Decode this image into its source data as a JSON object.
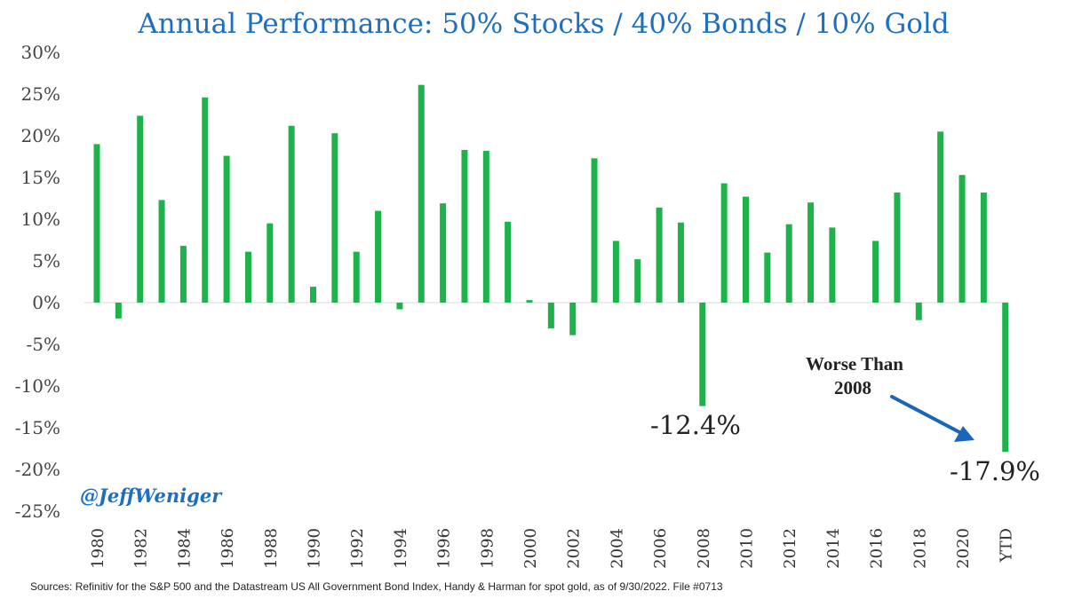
{
  "chart_data": {
    "type": "bar",
    "title": "Annual Performance: 50% Stocks / 40% Bonds / 10% Gold",
    "categories": [
      "1980",
      "1981",
      "1982",
      "1983",
      "1984",
      "1985",
      "1986",
      "1987",
      "1988",
      "1989",
      "1990",
      "1991",
      "1992",
      "1993",
      "1994",
      "1995",
      "1996",
      "1997",
      "1998",
      "1999",
      "2000",
      "2001",
      "2002",
      "2003",
      "2004",
      "2005",
      "2006",
      "2007",
      "2008",
      "2009",
      "2010",
      "2011",
      "2012",
      "2013",
      "2014",
      "2015",
      "2016",
      "2017",
      "2018",
      "2019",
      "2020",
      "2021",
      "YTD"
    ],
    "x_tick_labels": [
      "1980",
      "",
      "1982",
      "",
      "1984",
      "",
      "1986",
      "",
      "1988",
      "",
      "1990",
      "",
      "1992",
      "",
      "1994",
      "",
      "1996",
      "",
      "1998",
      "",
      "2000",
      "",
      "2002",
      "",
      "2004",
      "",
      "2006",
      "",
      "2008",
      "",
      "2010",
      "",
      "2012",
      "",
      "2014",
      "",
      "2016",
      "",
      "2018",
      "",
      "2020",
      "",
      "YTD"
    ],
    "values": [
      19.0,
      -1.9,
      22.4,
      12.3,
      6.8,
      24.6,
      17.6,
      6.1,
      9.5,
      21.2,
      1.9,
      20.3,
      6.1,
      11.0,
      -0.8,
      26.1,
      11.9,
      18.3,
      18.2,
      9.7,
      0.3,
      -3.1,
      -3.9,
      17.3,
      7.4,
      5.2,
      11.4,
      9.6,
      -12.4,
      14.3,
      12.7,
      6.0,
      9.4,
      12.0,
      9.0,
      0.0,
      7.4,
      13.2,
      -2.1,
      20.5,
      15.3,
      13.2,
      -17.9
    ],
    "y_tick_labels": [
      "30%",
      "25%",
      "20%",
      "15%",
      "10%",
      "5%",
      "0%",
      "-5%",
      "-10%",
      "-15%",
      "-20%",
      "-25%"
    ],
    "ylim": [
      -25,
      30
    ],
    "bar_color": "#1db34a",
    "grid": false,
    "annotations": {
      "value_2008": "-12.4%",
      "value_ytd": "-17.9%",
      "note_line1": "Worse Than",
      "note_line2": "2008",
      "arrow_color": "#1a66b8"
    }
  },
  "watermark_handle": "@JeffWeniger",
  "source_note": "Sources: Refinitiv for the S&P 500 and the Datastream US All Government Bond Index, Handy & Harman for spot gold, as of 9/30/2022. File #0713",
  "colors": {
    "title": "#1f6fc0",
    "bars": "#1db34a"
  }
}
